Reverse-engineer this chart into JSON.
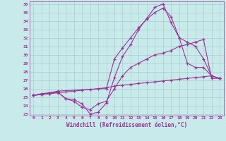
{
  "xlabel": "Windchill (Refroidissement éolien,°C)",
  "bg_color": "#c8eaea",
  "line_color": "#993399",
  "grid_color": "#aacccc",
  "xlim": [
    -0.5,
    23.5
  ],
  "ylim": [
    22.8,
    36.3
  ],
  "xticks": [
    0,
    1,
    2,
    3,
    4,
    5,
    6,
    7,
    8,
    9,
    10,
    11,
    12,
    13,
    14,
    15,
    16,
    17,
    18,
    19,
    20,
    21,
    22,
    23
  ],
  "yticks": [
    23,
    24,
    25,
    26,
    27,
    28,
    29,
    30,
    31,
    32,
    33,
    34,
    35,
    36
  ],
  "series": [
    {
      "x": [
        0,
        1,
        2,
        3,
        4,
        5,
        6,
        7,
        8,
        9,
        10,
        11,
        12,
        13,
        14,
        15,
        16,
        17,
        18,
        19,
        20,
        21,
        22,
        23
      ],
      "y": [
        25.2,
        25.4,
        25.5,
        25.6,
        24.8,
        24.7,
        24.2,
        23.0,
        23.2,
        24.3,
        27.3,
        29.8,
        31.2,
        33.0,
        34.3,
        35.6,
        36.0,
        33.8,
        32.0,
        29.0,
        28.5,
        28.5,
        27.5,
        27.2
      ]
    },
    {
      "x": [
        0,
        1,
        2,
        3,
        9,
        10,
        11,
        12,
        13,
        14,
        15,
        16,
        17,
        18,
        19,
        20,
        21,
        22,
        23
      ],
      "y": [
        25.2,
        25.3,
        25.5,
        25.7,
        26.0,
        29.5,
        30.8,
        32.0,
        33.2,
        34.2,
        35.0,
        35.5,
        34.5,
        32.0,
        31.5,
        31.0,
        29.5,
        27.5,
        27.2
      ]
    },
    {
      "x": [
        0,
        1,
        2,
        3,
        4,
        5,
        6,
        7,
        8,
        9,
        10,
        11,
        12,
        13,
        14,
        15,
        16,
        17,
        18,
        19,
        20,
        21,
        22,
        23
      ],
      "y": [
        25.2,
        25.3,
        25.4,
        25.5,
        25.6,
        25.7,
        25.8,
        25.9,
        26.0,
        26.1,
        26.3,
        26.4,
        26.5,
        26.6,
        26.7,
        26.8,
        26.9,
        27.0,
        27.1,
        27.2,
        27.3,
        27.4,
        27.5,
        27.2
      ]
    },
    {
      "x": [
        0,
        1,
        2,
        3,
        4,
        5,
        6,
        7,
        8,
        9,
        10,
        11,
        12,
        13,
        14,
        15,
        16,
        17,
        18,
        19,
        20,
        21,
        22,
        23
      ],
      "y": [
        25.2,
        25.3,
        25.4,
        25.6,
        24.8,
        24.5,
        23.8,
        23.5,
        24.2,
        24.5,
        26.0,
        27.5,
        28.5,
        29.0,
        29.5,
        30.0,
        30.2,
        30.5,
        31.0,
        31.2,
        31.5,
        31.8,
        27.2,
        27.2
      ]
    }
  ]
}
